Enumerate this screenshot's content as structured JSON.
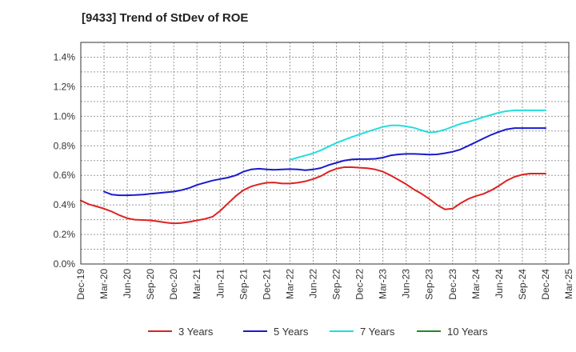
{
  "chart_data": {
    "type": "line",
    "title": "[9433]  Trend of StDev of ROE",
    "xlabel": "",
    "ylabel": "",
    "x_ticks": [
      "Dec-19",
      "Mar-20",
      "Jun-20",
      "Sep-20",
      "Dec-20",
      "Mar-21",
      "Jun-21",
      "Sep-21",
      "Dec-21",
      "Mar-22",
      "Jun-22",
      "Sep-22",
      "Dec-22",
      "Mar-23",
      "Jun-23",
      "Sep-23",
      "Dec-23",
      "Mar-24",
      "Jun-24",
      "Sep-24",
      "Dec-24",
      "Mar-25"
    ],
    "y_ticks": [
      "0.0%",
      "0.2%",
      "0.4%",
      "0.6%",
      "0.8%",
      "1.0%",
      "1.2%",
      "1.4%"
    ],
    "ylim": [
      0,
      1.5
    ],
    "grid": true,
    "legend_position": "bottom",
    "series": [
      {
        "name": "3 Years",
        "color": "#dd2222",
        "x_index": [
          0,
          0.33,
          0.67,
          1,
          1.33,
          1.67,
          2,
          2.33,
          2.67,
          3,
          3.33,
          3.67,
          4,
          4.33,
          4.67,
          5,
          5.33,
          5.67,
          6,
          6.33,
          6.67,
          7,
          7.33,
          7.67,
          8,
          8.33,
          8.67,
          9,
          9.33,
          9.67,
          10,
          10.33,
          10.67,
          11,
          11.33,
          11.67,
          12,
          12.33,
          12.67,
          13,
          13.33,
          13.67,
          14,
          14.33,
          14.67,
          15,
          15.33,
          15.67,
          16,
          16.33,
          16.67,
          17,
          17.33,
          17.67,
          18,
          18.33,
          18.67,
          19,
          19.33,
          19.67,
          20
        ],
        "values": [
          0.43,
          0.405,
          0.39,
          0.375,
          0.355,
          0.33,
          0.31,
          0.3,
          0.298,
          0.295,
          0.288,
          0.28,
          0.275,
          0.278,
          0.285,
          0.295,
          0.305,
          0.32,
          0.36,
          0.41,
          0.46,
          0.5,
          0.525,
          0.54,
          0.55,
          0.552,
          0.545,
          0.545,
          0.55,
          0.56,
          0.575,
          0.595,
          0.625,
          0.645,
          0.655,
          0.655,
          0.652,
          0.648,
          0.64,
          0.625,
          0.6,
          0.57,
          0.54,
          0.505,
          0.475,
          0.44,
          0.4,
          0.37,
          0.375,
          0.41,
          0.44,
          0.46,
          0.475,
          0.5,
          0.53,
          0.565,
          0.59,
          0.605,
          0.612,
          0.612,
          0.612
        ]
      },
      {
        "name": "5 Years",
        "color": "#1a1acc",
        "x_index": [
          1,
          1.33,
          1.67,
          2,
          2.33,
          2.67,
          3,
          3.33,
          3.67,
          4,
          4.33,
          4.67,
          5,
          5.33,
          5.67,
          6,
          6.33,
          6.67,
          7,
          7.33,
          7.67,
          8,
          8.33,
          8.67,
          9,
          9.33,
          9.67,
          10,
          10.33,
          10.67,
          11,
          11.33,
          11.67,
          12,
          12.33,
          12.67,
          13,
          13.33,
          13.67,
          14,
          14.33,
          14.67,
          15,
          15.33,
          15.67,
          16,
          16.33,
          16.67,
          17,
          17.33,
          17.67,
          18,
          18.33,
          18.67,
          19,
          19.33,
          19.67,
          20
        ],
        "values": [
          0.49,
          0.47,
          0.465,
          0.465,
          0.467,
          0.47,
          0.475,
          0.48,
          0.485,
          0.49,
          0.5,
          0.515,
          0.535,
          0.55,
          0.565,
          0.575,
          0.585,
          0.6,
          0.625,
          0.64,
          0.645,
          0.64,
          0.638,
          0.64,
          0.642,
          0.64,
          0.635,
          0.64,
          0.65,
          0.67,
          0.685,
          0.7,
          0.708,
          0.71,
          0.71,
          0.712,
          0.72,
          0.735,
          0.742,
          0.745,
          0.745,
          0.743,
          0.74,
          0.742,
          0.75,
          0.76,
          0.775,
          0.8,
          0.825,
          0.85,
          0.875,
          0.895,
          0.912,
          0.92,
          0.92,
          0.92,
          0.92,
          0.92
        ]
      },
      {
        "name": "7 Years",
        "color": "#22dddd",
        "x_index": [
          9,
          9.33,
          9.67,
          10,
          10.33,
          10.67,
          11,
          11.33,
          11.67,
          12,
          12.33,
          12.67,
          13,
          13.33,
          13.67,
          14,
          14.33,
          14.67,
          15,
          15.33,
          15.67,
          16,
          16.33,
          16.67,
          17,
          17.33,
          17.67,
          18,
          18.33,
          18.67,
          19,
          19.33,
          19.67,
          20
        ],
        "values": [
          0.705,
          0.72,
          0.735,
          0.75,
          0.77,
          0.795,
          0.82,
          0.84,
          0.86,
          0.878,
          0.895,
          0.912,
          0.928,
          0.938,
          0.938,
          0.932,
          0.922,
          0.905,
          0.89,
          0.895,
          0.91,
          0.93,
          0.948,
          0.962,
          0.978,
          0.995,
          1.01,
          1.025,
          1.035,
          1.04,
          1.04,
          1.04,
          1.04,
          1.04
        ]
      },
      {
        "name": "10 Years",
        "color": "#228822",
        "x_index": [],
        "values": []
      }
    ]
  }
}
